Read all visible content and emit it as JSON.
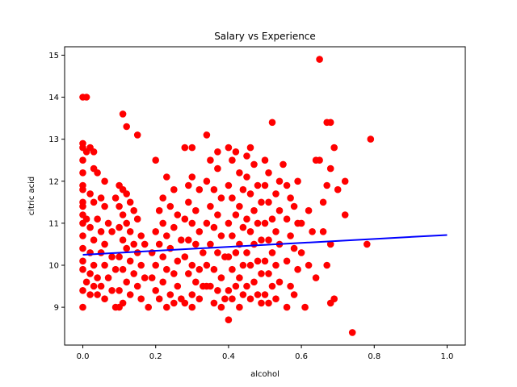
{
  "chart_data": {
    "type": "scatter",
    "title": "Salary vs Experience",
    "xlabel": "alcohol",
    "ylabel": "citric acid",
    "xlim": [
      -0.05,
      1.05
    ],
    "ylim": [
      8.1,
      15.2
    ],
    "xticks": [
      0.0,
      0.2,
      0.4,
      0.6,
      0.8,
      1.0
    ],
    "xtick_labels": [
      "0.0",
      "0.2",
      "0.4",
      "0.6",
      "0.8",
      "1.0"
    ],
    "yticks": [
      9,
      10,
      11,
      12,
      13,
      14,
      15
    ],
    "ytick_labels": [
      "9",
      "10",
      "11",
      "12",
      "13",
      "14",
      "15"
    ],
    "grid": false,
    "colors": {
      "points": "#ff0000",
      "line": "#0000ff"
    },
    "series": [
      {
        "kind": "points",
        "points": [
          [
            0.0,
            14.0
          ],
          [
            0.01,
            14.0
          ],
          [
            0.0,
            12.9
          ],
          [
            0.0,
            12.8
          ],
          [
            0.01,
            12.7
          ],
          [
            0.02,
            12.8
          ],
          [
            0.03,
            12.7
          ],
          [
            0.0,
            12.5
          ],
          [
            0.0,
            12.2
          ],
          [
            0.03,
            12.3
          ],
          [
            0.04,
            12.2
          ],
          [
            0.06,
            12.0
          ],
          [
            0.0,
            11.9
          ],
          [
            0.0,
            11.8
          ],
          [
            0.02,
            11.7
          ],
          [
            0.05,
            11.6
          ],
          [
            0.0,
            11.5
          ],
          [
            0.0,
            11.4
          ],
          [
            0.03,
            11.5
          ],
          [
            0.06,
            11.4
          ],
          [
            0.0,
            11.2
          ],
          [
            0.01,
            11.1
          ],
          [
            0.04,
            11.1
          ],
          [
            0.07,
            11.0
          ],
          [
            0.0,
            11.0
          ],
          [
            0.02,
            10.9
          ],
          [
            0.05,
            10.8
          ],
          [
            0.08,
            10.8
          ],
          [
            0.0,
            10.7
          ],
          [
            0.03,
            10.6
          ],
          [
            0.06,
            10.5
          ],
          [
            0.0,
            10.4
          ],
          [
            0.02,
            10.3
          ],
          [
            0.05,
            10.3
          ],
          [
            0.08,
            10.2
          ],
          [
            0.0,
            10.1
          ],
          [
            0.03,
            10.0
          ],
          [
            0.06,
            10.0
          ],
          [
            0.09,
            9.9
          ],
          [
            0.0,
            9.9
          ],
          [
            0.02,
            9.8
          ],
          [
            0.04,
            9.7
          ],
          [
            0.07,
            9.7
          ],
          [
            0.01,
            9.6
          ],
          [
            0.03,
            9.5
          ],
          [
            0.05,
            9.5
          ],
          [
            0.08,
            9.4
          ],
          [
            0.0,
            9.4
          ],
          [
            0.02,
            9.3
          ],
          [
            0.04,
            9.3
          ],
          [
            0.06,
            9.2
          ],
          [
            0.0,
            9.0
          ],
          [
            0.09,
            9.0
          ],
          [
            0.1,
            9.0
          ],
          [
            0.1,
            11.9
          ],
          [
            0.11,
            11.8
          ],
          [
            0.12,
            11.7
          ],
          [
            0.09,
            11.6
          ],
          [
            0.13,
            11.5
          ],
          [
            0.1,
            11.4
          ],
          [
            0.14,
            11.3
          ],
          [
            0.11,
            11.2
          ],
          [
            0.15,
            11.1
          ],
          [
            0.12,
            11.0
          ],
          [
            0.1,
            10.9
          ],
          [
            0.13,
            10.8
          ],
          [
            0.16,
            10.7
          ],
          [
            0.11,
            10.6
          ],
          [
            0.14,
            10.5
          ],
          [
            0.17,
            10.5
          ],
          [
            0.12,
            10.4
          ],
          [
            0.15,
            10.3
          ],
          [
            0.1,
            10.2
          ],
          [
            0.13,
            10.1
          ],
          [
            0.16,
            10.0
          ],
          [
            0.11,
            9.9
          ],
          [
            0.14,
            9.8
          ],
          [
            0.17,
            9.7
          ],
          [
            0.12,
            9.6
          ],
          [
            0.15,
            9.5
          ],
          [
            0.1,
            9.4
          ],
          [
            0.13,
            9.3
          ],
          [
            0.16,
            9.2
          ],
          [
            0.11,
            9.1
          ],
          [
            0.11,
            13.6
          ],
          [
            0.12,
            13.3
          ],
          [
            0.15,
            13.1
          ],
          [
            0.2,
            12.5
          ],
          [
            0.23,
            12.1
          ],
          [
            0.25,
            11.8
          ],
          [
            0.22,
            11.6
          ],
          [
            0.24,
            11.4
          ],
          [
            0.21,
            11.3
          ],
          [
            0.26,
            11.2
          ],
          [
            0.22,
            11.0
          ],
          [
            0.25,
            10.9
          ],
          [
            0.2,
            10.8
          ],
          [
            0.23,
            10.7
          ],
          [
            0.27,
            10.6
          ],
          [
            0.21,
            10.5
          ],
          [
            0.24,
            10.4
          ],
          [
            0.19,
            10.3
          ],
          [
            0.22,
            10.2
          ],
          [
            0.26,
            10.1
          ],
          [
            0.2,
            10.0
          ],
          [
            0.23,
            9.9
          ],
          [
            0.25,
            9.8
          ],
          [
            0.19,
            9.7
          ],
          [
            0.22,
            9.6
          ],
          [
            0.26,
            9.5
          ],
          [
            0.2,
            9.4
          ],
          [
            0.24,
            9.3
          ],
          [
            0.21,
            9.2
          ],
          [
            0.25,
            9.1
          ],
          [
            0.18,
            9.0
          ],
          [
            0.23,
            9.0
          ],
          [
            0.27,
            9.2
          ],
          [
            0.28,
            12.8
          ],
          [
            0.3,
            12.8
          ],
          [
            0.3,
            12.1
          ],
          [
            0.29,
            11.9
          ],
          [
            0.32,
            11.8
          ],
          [
            0.29,
            11.5
          ],
          [
            0.31,
            11.3
          ],
          [
            0.28,
            11.1
          ],
          [
            0.3,
            11.0
          ],
          [
            0.32,
            10.8
          ],
          [
            0.29,
            10.6
          ],
          [
            0.31,
            10.5
          ],
          [
            0.33,
            10.3
          ],
          [
            0.28,
            10.2
          ],
          [
            0.3,
            10.0
          ],
          [
            0.32,
            9.9
          ],
          [
            0.29,
            9.8
          ],
          [
            0.31,
            9.6
          ],
          [
            0.33,
            9.5
          ],
          [
            0.3,
            9.3
          ],
          [
            0.32,
            9.2
          ],
          [
            0.28,
            9.1
          ],
          [
            0.3,
            9.0
          ],
          [
            0.34,
            9.5
          ],
          [
            0.34,
            13.1
          ],
          [
            0.35,
            12.5
          ],
          [
            0.37,
            12.3
          ],
          [
            0.34,
            12.0
          ],
          [
            0.36,
            11.8
          ],
          [
            0.38,
            11.6
          ],
          [
            0.35,
            11.4
          ],
          [
            0.37,
            11.2
          ],
          [
            0.34,
            11.0
          ],
          [
            0.36,
            10.9
          ],
          [
            0.38,
            10.7
          ],
          [
            0.35,
            10.5
          ],
          [
            0.37,
            10.3
          ],
          [
            0.39,
            10.2
          ],
          [
            0.34,
            10.0
          ],
          [
            0.36,
            9.9
          ],
          [
            0.38,
            9.7
          ],
          [
            0.35,
            9.5
          ],
          [
            0.37,
            9.4
          ],
          [
            0.39,
            9.2
          ],
          [
            0.36,
            9.1
          ],
          [
            0.38,
            9.0
          ],
          [
            0.37,
            12.7
          ],
          [
            0.4,
            12.8
          ],
          [
            0.42,
            12.7
          ],
          [
            0.41,
            12.5
          ],
          [
            0.43,
            12.2
          ],
          [
            0.4,
            11.9
          ],
          [
            0.44,
            11.8
          ],
          [
            0.41,
            11.6
          ],
          [
            0.43,
            11.4
          ],
          [
            0.42,
            11.2
          ],
          [
            0.4,
            11.0
          ],
          [
            0.44,
            10.9
          ],
          [
            0.41,
            10.7
          ],
          [
            0.43,
            10.5
          ],
          [
            0.42,
            10.3
          ],
          [
            0.4,
            10.2
          ],
          [
            0.44,
            10.0
          ],
          [
            0.41,
            9.9
          ],
          [
            0.43,
            9.7
          ],
          [
            0.42,
            9.5
          ],
          [
            0.4,
            9.4
          ],
          [
            0.44,
            9.3
          ],
          [
            0.41,
            9.2
          ],
          [
            0.43,
            9.0
          ],
          [
            0.4,
            8.7
          ],
          [
            0.45,
            12.6
          ],
          [
            0.46,
            12.8
          ],
          [
            0.47,
            12.4
          ],
          [
            0.45,
            12.1
          ],
          [
            0.48,
            11.9
          ],
          [
            0.46,
            11.7
          ],
          [
            0.49,
            11.5
          ],
          [
            0.47,
            11.3
          ],
          [
            0.45,
            11.1
          ],
          [
            0.48,
            11.0
          ],
          [
            0.46,
            10.8
          ],
          [
            0.49,
            10.6
          ],
          [
            0.47,
            10.5
          ],
          [
            0.45,
            10.3
          ],
          [
            0.48,
            10.1
          ],
          [
            0.46,
            10.0
          ],
          [
            0.49,
            9.8
          ],
          [
            0.47,
            9.6
          ],
          [
            0.45,
            9.5
          ],
          [
            0.48,
            9.3
          ],
          [
            0.46,
            9.2
          ],
          [
            0.49,
            9.1
          ],
          [
            0.5,
            12.5
          ],
          [
            0.51,
            12.2
          ],
          [
            0.52,
            13.4
          ],
          [
            0.5,
            11.9
          ],
          [
            0.53,
            11.7
          ],
          [
            0.51,
            11.5
          ],
          [
            0.54,
            11.3
          ],
          [
            0.52,
            11.1
          ],
          [
            0.5,
            11.0
          ],
          [
            0.53,
            10.8
          ],
          [
            0.51,
            10.6
          ],
          [
            0.54,
            10.5
          ],
          [
            0.52,
            10.3
          ],
          [
            0.5,
            10.1
          ],
          [
            0.53,
            10.0
          ],
          [
            0.51,
            9.8
          ],
          [
            0.54,
            9.6
          ],
          [
            0.52,
            9.5
          ],
          [
            0.5,
            9.3
          ],
          [
            0.53,
            9.2
          ],
          [
            0.51,
            9.1
          ],
          [
            0.54,
            12.0
          ],
          [
            0.55,
            12.4
          ],
          [
            0.56,
            11.9
          ],
          [
            0.57,
            11.6
          ],
          [
            0.58,
            11.4
          ],
          [
            0.56,
            11.1
          ],
          [
            0.59,
            11.0
          ],
          [
            0.57,
            10.7
          ],
          [
            0.58,
            10.4
          ],
          [
            0.56,
            10.1
          ],
          [
            0.59,
            9.9
          ],
          [
            0.57,
            9.5
          ],
          [
            0.58,
            9.3
          ],
          [
            0.56,
            9.0
          ],
          [
            0.59,
            12.0
          ],
          [
            0.6,
            10.3
          ],
          [
            0.6,
            11.0
          ],
          [
            0.62,
            11.3
          ],
          [
            0.64,
            12.5
          ],
          [
            0.65,
            12.5
          ],
          [
            0.63,
            10.8
          ],
          [
            0.62,
            10.0
          ],
          [
            0.64,
            9.7
          ],
          [
            0.61,
            9.0
          ],
          [
            0.65,
            14.9
          ],
          [
            0.66,
            11.5
          ],
          [
            0.67,
            13.4
          ],
          [
            0.68,
            13.4
          ],
          [
            0.67,
            11.9
          ],
          [
            0.68,
            12.3
          ],
          [
            0.66,
            10.8
          ],
          [
            0.68,
            10.5
          ],
          [
            0.67,
            10.0
          ],
          [
            0.69,
            12.8
          ],
          [
            0.68,
            9.1
          ],
          [
            0.69,
            9.2
          ],
          [
            0.7,
            11.8
          ],
          [
            0.72,
            12.0
          ],
          [
            0.72,
            11.2
          ],
          [
            0.74,
            8.4
          ],
          [
            0.78,
            10.5
          ],
          [
            0.79,
            13.0
          ]
        ]
      },
      {
        "kind": "line",
        "x": [
          0.0,
          1.0
        ],
        "y": [
          10.25,
          10.72
        ]
      }
    ]
  }
}
